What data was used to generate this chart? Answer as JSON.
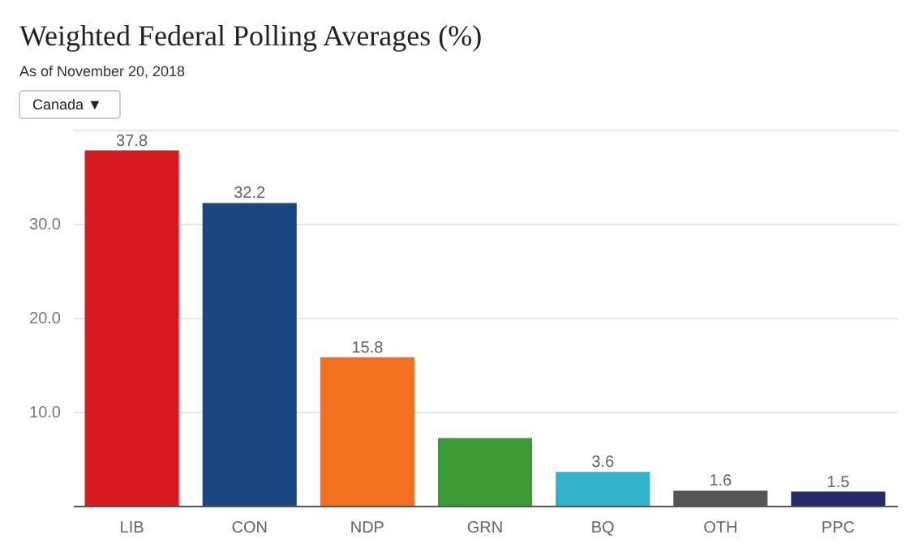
{
  "chart_data": {
    "type": "bar",
    "title": "Weighted Federal Polling Averages (%)",
    "subtitle": "As of November 20, 2018",
    "annotations": [
      "Canada ▼"
    ],
    "categories": [
      "LIB",
      "CON",
      "NDP",
      "GRN",
      "BQ",
      "OTH",
      "PPC"
    ],
    "values": [
      37.8,
      32.2,
      15.8,
      7.2,
      3.6,
      1.6,
      1.5
    ],
    "value_labels": [
      "37.8",
      "32.2",
      "15.8",
      null,
      "3.6",
      "1.6",
      "1.5"
    ],
    "colors": [
      "#d71920",
      "#1a4782",
      "#f37021",
      "#3d9b35",
      "#33b2cc",
      "#555555",
      "#262a6b"
    ],
    "ylim": [
      0,
      40
    ],
    "yticks": [
      {
        "value": 10,
        "label": "10.0"
      },
      {
        "value": 20,
        "label": "20.0"
      },
      {
        "value": 30,
        "label": "30.0"
      },
      {
        "value": 40,
        "label": null
      }
    ],
    "grid": "y"
  }
}
